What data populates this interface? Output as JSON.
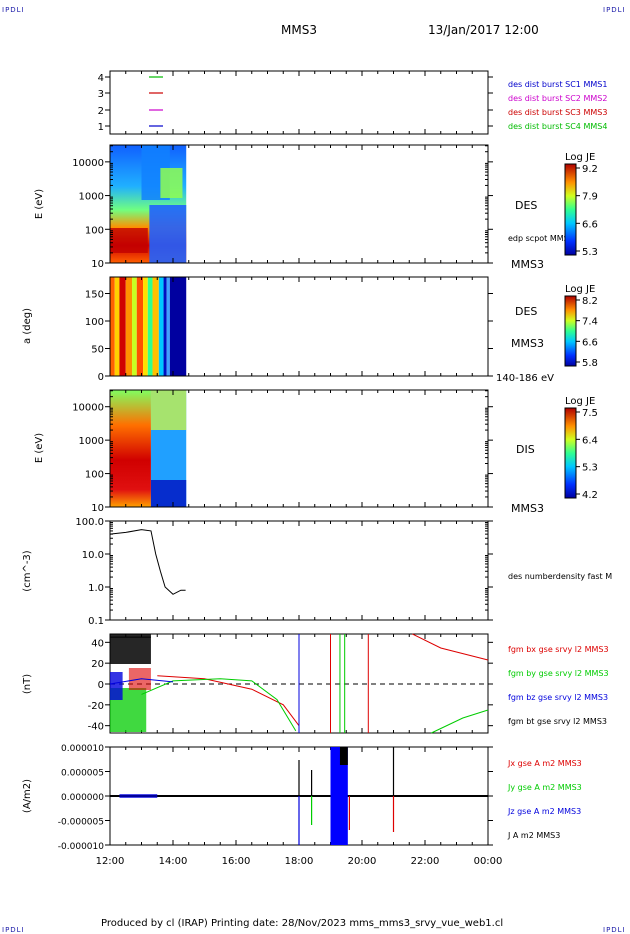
{
  "header": {
    "corner_tl": "IPDLI",
    "corner_tr": "IPDLI",
    "corner_bl": "IPDLI",
    "corner_br": "IPDLI",
    "spacecraft": "MMS3",
    "datetime": "13/Jan/2017 12:00"
  },
  "footer": {
    "text": "Produced by cl (IRAP)   Printing date: 28/Nov/2023   mms_mms3_srvy_vue_web1.cl"
  },
  "colors": {
    "c1": "#0000cc",
    "c2": "#cc00cc",
    "c3": "#cc0000",
    "c4": "#00bb00",
    "bx": "#dd0000",
    "by": "#00cc00",
    "bz": "#0000dd",
    "bt": "#000000"
  },
  "chart_data": [
    {
      "type": "scatter",
      "panel": "burst-availability",
      "yticks": [
        "4",
        "3",
        "2",
        "1"
      ],
      "legend": [
        "des dist burst SC1 MMS1",
        "des dist burst SC2 MMS2",
        "des dist burst SC3 MMS3",
        "des dist burst SC4 MMS4"
      ],
      "xlim": [
        "12:00",
        "00:00"
      ]
    },
    {
      "type": "heatmap",
      "panel": "des-energy",
      "ylabel": "E (eV)",
      "yticks": [
        "10000",
        "1000",
        "100",
        "10"
      ],
      "label": "DES",
      "sublabel": "edp scpot MMS3",
      "sc_label": "MMS3",
      "colorbar_title": "Log JE",
      "colorbar_ticks": [
        "9.2",
        "7.9",
        "6.6",
        "5.3"
      ],
      "data_extent": [
        "12:00",
        "14:25"
      ]
    },
    {
      "type": "heatmap",
      "panel": "des-pitch",
      "ylabel": "a (deg)",
      "yticks": [
        "150",
        "100",
        "50",
        "0"
      ],
      "label": "DES",
      "sublabel": "MMS3",
      "sc_label": "140-186 eV",
      "colorbar_title": "Log JE",
      "colorbar_ticks": [
        "8.2",
        "7.4",
        "6.6",
        "5.8"
      ]
    },
    {
      "type": "heatmap",
      "panel": "dis-energy",
      "ylabel": "E (eV)",
      "yticks": [
        "10000",
        "1000",
        "100",
        "10"
      ],
      "label": "DIS",
      "sc_label": "MMS3",
      "colorbar_title": "Log JE",
      "colorbar_ticks": [
        "7.5",
        "6.4",
        "5.3",
        "4.2"
      ]
    },
    {
      "type": "line",
      "panel": "density",
      "ylabel": "(cm^-3)",
      "yticks": [
        "100.0",
        "10.0",
        "1.0",
        "0.1"
      ],
      "ylog": true,
      "series": [
        {
          "name": "des numberdensity fast M",
          "x": [
            12.0,
            12.5,
            13.0,
            13.3,
            13.45,
            13.6,
            13.75,
            14.0,
            14.25,
            14.4
          ],
          "values": [
            40,
            45,
            55,
            50,
            10,
            3,
            1.0,
            0.6,
            0.8,
            0.8
          ]
        }
      ]
    },
    {
      "type": "line",
      "panel": "magnetic-field",
      "ylabel": "(nT)",
      "yticks": [
        "40",
        "20",
        "0",
        "-20",
        "-40"
      ],
      "ylim": [
        -48,
        48
      ],
      "series": [
        {
          "name": "fgm bx gse srvy l2 MMS3",
          "x": [
            13.5,
            15.0,
            16.5,
            17.5,
            18.0
          ],
          "values": [
            8,
            5,
            -5,
            -20,
            -40
          ]
        },
        {
          "name": "fgm by gse srvy l2 MMS3",
          "x": [
            13.0,
            14.0,
            15.5,
            16.5,
            17.3,
            17.9
          ],
          "values": [
            -10,
            3,
            5,
            3,
            -15,
            -45
          ]
        },
        {
          "name": "fgm bz gse srvy l2 MMS3",
          "x": [
            12.0,
            13.0,
            14.0
          ],
          "values": [
            0,
            5,
            2
          ]
        },
        {
          "name": "fgm bt gse srvy l2 MMS3",
          "x": [
            12.0,
            13.0,
            13.3
          ],
          "values": [
            45,
            45,
            45
          ]
        }
      ]
    },
    {
      "type": "line",
      "panel": "current-density",
      "ylabel": "(A/m2)",
      "yticks": [
        "0.000010",
        "0.000005",
        "0.000000",
        "-0.000005",
        "-0.000010"
      ],
      "ylim": [
        -1e-05,
        1e-05
      ],
      "xticks": [
        "12:00",
        "14:00",
        "16:00",
        "18:00",
        "20:00",
        "22:00",
        "00:00"
      ],
      "series": [
        {
          "name": "Jx gse A m2 MMS3"
        },
        {
          "name": "Jy gse A m2 MMS3"
        },
        {
          "name": "Jz gse A m2 MMS3"
        },
        {
          "name": "J A m2 MMS3"
        }
      ]
    }
  ]
}
